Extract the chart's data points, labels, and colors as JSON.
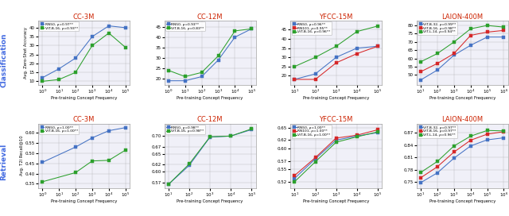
{
  "classification": {
    "CC-3M": {
      "x": [
        1.0,
        10.0,
        100.0,
        1000.0,
        10000.0,
        100000.0
      ],
      "RN50": [
        12,
        17,
        23,
        35,
        41,
        40
      ],
      "ViT-B-16": [
        10,
        11,
        15,
        30,
        37,
        29
      ],
      "series": [
        [
          "RN50",
          "#4472c4"
        ],
        [
          "ViT-B-16",
          "#2ca02c"
        ]
      ],
      "legend": [
        "RN50, ρ=0.97**",
        "ViT-B-16, ρ=0.93**"
      ],
      "ylim": [
        8,
        44
      ],
      "yticks": [
        10,
        15,
        20,
        25,
        30,
        35,
        40
      ]
    },
    "CC-12M": {
      "x": [
        1.0,
        10.0,
        100.0,
        1000.0,
        10000.0,
        100000.0
      ],
      "RN50": [
        19,
        19,
        21,
        29,
        40,
        44
      ],
      "ViT-B-16": [
        24,
        21,
        23,
        31,
        43,
        44
      ],
      "series": [
        [
          "RN50",
          "#4472c4"
        ],
        [
          "ViT-B-16",
          "#2ca02c"
        ]
      ],
      "legend": [
        "RN50, ρ=0.93**",
        "ViT-B-16, ρ=0.83**"
      ],
      "ylim": [
        17,
        48
      ],
      "yticks": [
        20,
        25,
        30,
        35,
        40,
        45
      ]
    },
    "YFCC-15M": {
      "x": [
        10.0,
        100.0,
        1000.0,
        10000.0,
        100000.0
      ],
      "RN50": [
        18,
        21,
        30,
        35,
        36
      ],
      "RN101": [
        18,
        18,
        27,
        32,
        36
      ],
      "ViT-B-16": [
        25,
        30,
        36,
        44,
        47
      ],
      "series": [
        [
          "RN50",
          "#4472c4"
        ],
        [
          "RN101",
          "#d62728"
        ],
        [
          "ViT-B-16",
          "#2ca02c"
        ]
      ],
      "legend": [
        "RN50, ρ=0.96**",
        "RN101, ρ=0.95**",
        "ViT-B-16, ρ=0.96**"
      ],
      "ylim": [
        15,
        50
      ],
      "yticks": [
        20,
        25,
        30,
        35,
        40,
        45
      ]
    },
    "LAION-400M": {
      "x": [
        10.0,
        100.0,
        1000.0,
        10000.0,
        100000.0,
        1000000.0
      ],
      "ViT-B-32": [
        47,
        53,
        62,
        68,
        73,
        73
      ],
      "ViT-B-16": [
        52,
        57,
        63,
        74,
        76,
        77
      ],
      "ViT-L-14": [
        58,
        63,
        70,
        78,
        80,
        79
      ],
      "series": [
        [
          "ViT-B-32",
          "#4472c4"
        ],
        [
          "ViT-B-16",
          "#d62728"
        ],
        [
          "ViT-L-14",
          "#2ca02c"
        ]
      ],
      "legend": [
        "ViT-B-32, ρ=0.99**",
        "ViT-B-16, ρ=0.98**",
        "ViT-L-14, ρ=0.94**"
      ],
      "ylim": [
        44,
        83
      ],
      "yticks": [
        50,
        55,
        60,
        65,
        70,
        75,
        80
      ]
    }
  },
  "retrieval": {
    "CC-3M": {
      "x": [
        1.0,
        100.0,
        1000.0,
        10000.0,
        100000.0
      ],
      "RN50": [
        0.455,
        0.53,
        0.575,
        0.61,
        0.625
      ],
      "ViT-B-16": [
        0.36,
        0.405,
        0.462,
        0.465,
        0.515
      ],
      "series": [
        [
          "RN50",
          "#4472c4"
        ],
        [
          "ViT-B-16",
          "#2ca02c"
        ]
      ],
      "legend": [
        "RN50, ρ=1.00**",
        "ViT-B-16, ρ=1.00**"
      ],
      "ylim": [
        0.33,
        0.645
      ],
      "yticks": [
        0.35,
        0.4,
        0.45,
        0.5,
        0.55,
        0.6
      ]
    },
    "CC-12M": {
      "x": [
        10.0,
        100.0,
        1000.0,
        10000.0,
        100000.0
      ],
      "RN50": [
        0.565,
        0.618,
        0.697,
        0.7,
        0.718
      ],
      "ViT-B-16": [
        0.565,
        0.622,
        0.698,
        0.7,
        0.72
      ],
      "series": [
        [
          "RN50",
          "#4472c4"
        ],
        [
          "ViT-B-16",
          "#2ca02c"
        ]
      ],
      "legend": [
        "RN50, ρ=0.98**",
        "ViT-B-16, ρ=0.98**"
      ],
      "ylim": [
        0.555,
        0.735
      ],
      "yticks": [
        0.57,
        0.6,
        0.62,
        0.65,
        0.67,
        0.7
      ]
    },
    "YFCC-15M": {
      "x": [
        10.0,
        100.0,
        1000.0,
        10000.0,
        100000.0
      ],
      "RN50": [
        0.528,
        0.575,
        0.62,
        0.63,
        0.638
      ],
      "RN101": [
        0.535,
        0.578,
        0.625,
        0.632,
        0.645
      ],
      "ViT-B-16": [
        0.52,
        0.568,
        0.615,
        0.628,
        0.64
      ],
      "series": [
        [
          "RN50",
          "#4472c4"
        ],
        [
          "RN101",
          "#d62728"
        ],
        [
          "ViT-B-16",
          "#2ca02c"
        ]
      ],
      "legend": [
        "RN50, ρ=1.00**",
        "RN101, ρ=1.00**",
        "ViT-B-16, ρ=1.00**"
      ],
      "ylim": [
        0.505,
        0.66
      ],
      "yticks": [
        0.52,
        0.55,
        0.57,
        0.6,
        0.62,
        0.65
      ]
    },
    "LAION-400M": {
      "x": [
        10.0,
        100.0,
        1000.0,
        10000.0,
        100000.0,
        1000000.0
      ],
      "ViT-B-32": [
        0.748,
        0.772,
        0.808,
        0.838,
        0.853,
        0.858
      ],
      "ViT-B-16": [
        0.76,
        0.787,
        0.823,
        0.852,
        0.867,
        0.873
      ],
      "ViT-L-14": [
        0.773,
        0.8,
        0.838,
        0.862,
        0.876,
        0.875
      ],
      "series": [
        [
          "ViT-B-32",
          "#4472c4"
        ],
        [
          "ViT-B-16",
          "#d62728"
        ],
        [
          "ViT-L-14",
          "#2ca02c"
        ]
      ],
      "legend": [
        "ViT-B-32, ρ=0.97**",
        "ViT-B-16, ρ=0.97**",
        "ViT-L-14, ρ=0.96**"
      ],
      "ylim": [
        0.735,
        0.893
      ],
      "yticks": [
        0.75,
        0.78,
        0.81,
        0.84,
        0.87
      ]
    }
  },
  "col_order": [
    "CC-3M",
    "CC-12M",
    "YFCC-15M",
    "LAION-400M"
  ],
  "row_labels": [
    "Classification",
    "Retrieval"
  ],
  "title_color": "#cc2200",
  "row_label_color": "#4169e1",
  "xlabel": "Pre-training Concept Frequency",
  "ylabel_cls": "Avg. Zero-Shot Accuracy",
  "ylabel_ret": "Avg. T2I Recall@10",
  "bg_color": "#f0f0f8"
}
